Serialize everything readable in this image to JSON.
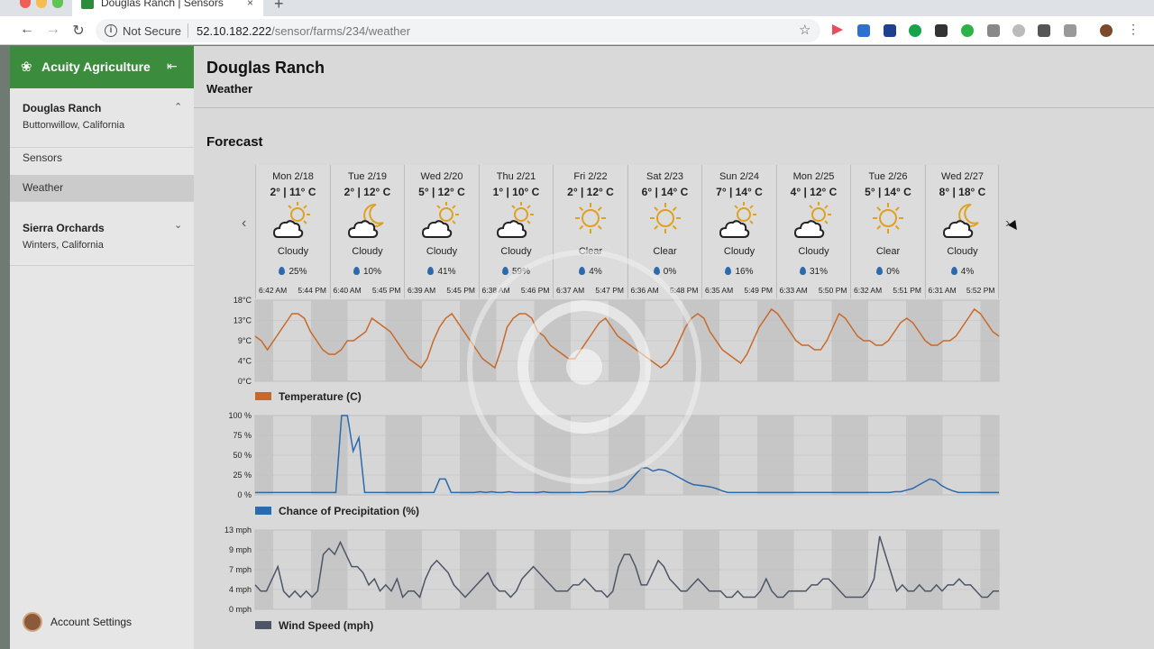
{
  "browser": {
    "tab_title": "Douglas Ranch | Sensors",
    "url_host": "52.10.182.222",
    "url_path": "/sensor/farms/234/weather",
    "security_label": "Not Secure",
    "tab_close": "×",
    "new_tab": "+"
  },
  "sidebar": {
    "brand": "Acuity Agriculture",
    "farms": [
      {
        "name": "Douglas Ranch",
        "location": "Buttonwillow, California"
      },
      {
        "name": "Sierra Orchards",
        "location": "Winters, California"
      }
    ],
    "links": [
      "Sensors",
      "Weather"
    ],
    "account_label": "Account Settings"
  },
  "page": {
    "title": "Douglas Ranch",
    "subtitle": "Weather",
    "forecast_title": "Forecast"
  },
  "forecast": [
    {
      "date": "Mon 2/18",
      "temps": "2° | 11° C",
      "icon": "partly-cloudy-icon",
      "condition": "Cloudy",
      "precip": "25%",
      "sunrise": "6:42 AM",
      "sunset": "5:44 PM"
    },
    {
      "date": "Tue 2/19",
      "temps": "2° | 12° C",
      "icon": "cloudy-night-icon",
      "condition": "Cloudy",
      "precip": "10%",
      "sunrise": "6:40 AM",
      "sunset": "5:45 PM"
    },
    {
      "date": "Wed 2/20",
      "temps": "5° | 12° C",
      "icon": "partly-cloudy-icon",
      "condition": "Cloudy",
      "precip": "41%",
      "sunrise": "6:39 AM",
      "sunset": "5:45 PM"
    },
    {
      "date": "Thu 2/21",
      "temps": "1° | 10° C",
      "icon": "partly-cloudy-icon",
      "condition": "Cloudy",
      "precip": "59%",
      "sunrise": "6:38 AM",
      "sunset": "5:46 PM"
    },
    {
      "date": "Fri 2/22",
      "temps": "2° | 12° C",
      "icon": "sun-icon",
      "condition": "Clear",
      "precip": "4%",
      "sunrise": "6:37 AM",
      "sunset": "5:47 PM"
    },
    {
      "date": "Sat 2/23",
      "temps": "6° | 14° C",
      "icon": "sun-icon",
      "condition": "Clear",
      "precip": "0%",
      "sunrise": "6:36 AM",
      "sunset": "5:48 PM"
    },
    {
      "date": "Sun 2/24",
      "temps": "7° | 14° C",
      "icon": "partly-cloudy-icon",
      "condition": "Cloudy",
      "precip": "16%",
      "sunrise": "6:35 AM",
      "sunset": "5:49 PM"
    },
    {
      "date": "Mon 2/25",
      "temps": "4° | 12° C",
      "icon": "partly-cloudy-icon",
      "condition": "Cloudy",
      "precip": "31%",
      "sunrise": "6:33 AM",
      "sunset": "5:50 PM"
    },
    {
      "date": "Tue 2/26",
      "temps": "5° | 14° C",
      "icon": "sun-icon",
      "condition": "Clear",
      "precip": "0%",
      "sunrise": "6:32 AM",
      "sunset": "5:51 PM"
    },
    {
      "date": "Wed 2/27",
      "temps": "8° | 18° C",
      "icon": "cloudy-night-icon",
      "condition": "Cloudy",
      "precip": "4%",
      "sunrise": "6:31 AM",
      "sunset": "5:52 PM"
    }
  ],
  "colors": {
    "brand_green": "#3b8c3d",
    "temperature": "#c8692a",
    "precipitation": "#2a6aad",
    "wind": "#4d5566",
    "sun": "#e0a020"
  },
  "chart_data": [
    {
      "type": "line",
      "series": [
        {
          "name": "Temperature (C)",
          "values": [
            10,
            9,
            7,
            9,
            11,
            13,
            15,
            15,
            14,
            11,
            9,
            7,
            6,
            6,
            7,
            9,
            9,
            10,
            11,
            14,
            13,
            12,
            11,
            9,
            7,
            5,
            4,
            3,
            5,
            9,
            12,
            14,
            15,
            13,
            11,
            9,
            7,
            5,
            4,
            3,
            7,
            12,
            14,
            15,
            15,
            14,
            11,
            10,
            8,
            7,
            6,
            5,
            5,
            7,
            9,
            11,
            13,
            14,
            12,
            10,
            9,
            8,
            7,
            6,
            5,
            4,
            3,
            4,
            6,
            9,
            12,
            14,
            15,
            14,
            11,
            9,
            7,
            6,
            5,
            4,
            6,
            9,
            12,
            14,
            16,
            15,
            13,
            11,
            9,
            8,
            8,
            7,
            7,
            9,
            12,
            15,
            14,
            12,
            10,
            9,
            9,
            8,
            8,
            9,
            11,
            13,
            14,
            13,
            11,
            9,
            8,
            8,
            9,
            9,
            10,
            12,
            14,
            16,
            15,
            13,
            11,
            10
          ]
        }
      ],
      "y_ticks": [
        "18°C",
        "13°C",
        "9°C",
        "4°C",
        "0°C"
      ],
      "ylim": [
        0,
        18
      ]
    },
    {
      "type": "line",
      "series": [
        {
          "name": "Chance of Precipitation (%)",
          "values": [
            3,
            3,
            3,
            3,
            3,
            3,
            3,
            3,
            3,
            3,
            3,
            3,
            3,
            3,
            3,
            100,
            100,
            55,
            72,
            3,
            3,
            3,
            3,
            3,
            3,
            3,
            3,
            3,
            3,
            3,
            3,
            3,
            20,
            20,
            3,
            3,
            3,
            3,
            3,
            4,
            3,
            4,
            3,
            3,
            4,
            3,
            3,
            3,
            3,
            3,
            4,
            3,
            3,
            3,
            3,
            3,
            3,
            3,
            4,
            4,
            4,
            4,
            4,
            6,
            10,
            18,
            26,
            34,
            34,
            30,
            32,
            31,
            28,
            24,
            20,
            16,
            13,
            12,
            11,
            10,
            8,
            5,
            3,
            3,
            3,
            3,
            3,
            3,
            3,
            3,
            3,
            3,
            3,
            3,
            3,
            3,
            3,
            3,
            3,
            3,
            3,
            3,
            3,
            3,
            3,
            3,
            3,
            3,
            3,
            3,
            3,
            4,
            4,
            6,
            8,
            12,
            16,
            20,
            18,
            12,
            8,
            5,
            3,
            3,
            3,
            3,
            3,
            3,
            3,
            3
          ]
        }
      ],
      "y_ticks": [
        "100 %",
        "75 %",
        "50 %",
        "25 %",
        "0 %"
      ],
      "ylim": [
        0,
        100
      ]
    },
    {
      "type": "line",
      "series": [
        {
          "name": "Wind Speed (mph)",
          "values": [
            4,
            3,
            3,
            5,
            7,
            3,
            2,
            3,
            2,
            3,
            2,
            3,
            9,
            10,
            9,
            11,
            9,
            7,
            7,
            6,
            4,
            5,
            3,
            4,
            3,
            5,
            2,
            3,
            3,
            2,
            5,
            7,
            8,
            7,
            6,
            4,
            3,
            2,
            3,
            4,
            5,
            6,
            4,
            3,
            3,
            2,
            3,
            5,
            6,
            7,
            6,
            5,
            4,
            3,
            3,
            3,
            4,
            4,
            5,
            4,
            3,
            3,
            2,
            3,
            7,
            9,
            9,
            7,
            4,
            4,
            6,
            8,
            7,
            5,
            4,
            3,
            3,
            4,
            5,
            4,
            3,
            3,
            3,
            2,
            2,
            3,
            2,
            2,
            2,
            3,
            5,
            3,
            2,
            2,
            3,
            3,
            3,
            3,
            4,
            4,
            5,
            5,
            4,
            3,
            2,
            2,
            2,
            2,
            3,
            5,
            12,
            9,
            6,
            3,
            4,
            3,
            3,
            4,
            3,
            3,
            4,
            3,
            4,
            4,
            5,
            4,
            4,
            3,
            2,
            2,
            3,
            3
          ]
        }
      ],
      "y_ticks": [
        "13 mph",
        "9 mph",
        "7 mph",
        "4 mph",
        "0 mph"
      ],
      "ylim": [
        0,
        13
      ]
    }
  ]
}
